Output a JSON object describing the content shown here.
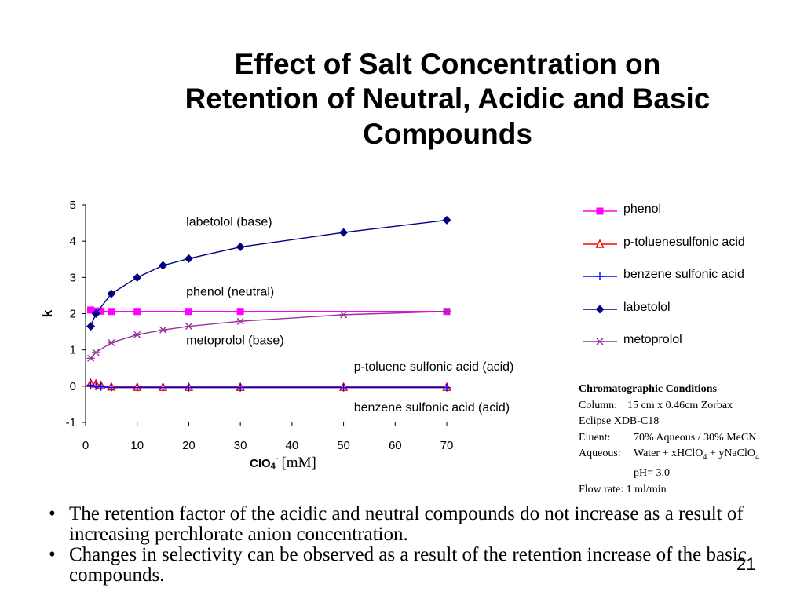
{
  "title": {
    "line1": "Effect of Salt Concentration on",
    "line2": "Retention of Neutral, Acidic and Basic",
    "line3": "Compounds"
  },
  "chart_data": {
    "type": "line",
    "xlabel_chem": "ClO",
    "xlabel_sub": "4",
    "xlabel_sup": "-",
    "xlabel_unit": "[mM]",
    "ylabel": "k",
    "xlim": [
      0,
      70
    ],
    "ylim": [
      -1,
      5
    ],
    "xticks": [
      "0",
      "10",
      "20",
      "30",
      "40",
      "50",
      "60",
      "70"
    ],
    "yticks": [
      "-1",
      "0",
      "1",
      "2",
      "3",
      "4",
      "5"
    ],
    "grid": false,
    "legend_position": "right",
    "series": [
      {
        "name": "phenol",
        "color": "#ff00ff",
        "marker": "square",
        "x": [
          1,
          2,
          3,
          5,
          10,
          20,
          30,
          70
        ],
        "y": [
          2.1,
          2.07,
          2.07,
          2.06,
          2.06,
          2.06,
          2.06,
          2.06
        ]
      },
      {
        "name": "p-toluenesulfonic acid",
        "color": "#ff0000",
        "marker": "triangle",
        "x": [
          1,
          2,
          3,
          5,
          10,
          15,
          20,
          30,
          50,
          70
        ],
        "y": [
          0.08,
          0.06,
          0.02,
          -0.02,
          -0.03,
          -0.03,
          -0.03,
          -0.03,
          -0.03,
          -0.03
        ]
      },
      {
        "name": "benzene sulfonic acid",
        "color": "#0000ff",
        "marker": "plus",
        "x": [
          1,
          2,
          3,
          5,
          10,
          15,
          20,
          30,
          50,
          70
        ],
        "y": [
          0.03,
          0.0,
          -0.02,
          -0.04,
          -0.04,
          -0.04,
          -0.04,
          -0.04,
          -0.04,
          -0.04
        ]
      },
      {
        "name": "labetolol",
        "color": "#000080",
        "marker": "diamond",
        "x": [
          1,
          2,
          5,
          10,
          15,
          20,
          30,
          50,
          70
        ],
        "y": [
          1.65,
          2.0,
          2.55,
          3.0,
          3.33,
          3.52,
          3.84,
          4.24,
          4.58
        ]
      },
      {
        "name": "metoprolol",
        "color": "#993399",
        "marker": "asterisk",
        "x": [
          1,
          2,
          5,
          10,
          15,
          20,
          30,
          50,
          70
        ],
        "y": [
          0.77,
          0.93,
          1.2,
          1.42,
          1.55,
          1.65,
          1.79,
          1.97,
          2.06
        ]
      }
    ],
    "annotations": [
      {
        "text": "labetolol (base)",
        "x": 19.5,
        "y": 4.43
      },
      {
        "text": "phenol (neutral)",
        "x": 19.5,
        "y": 2.5
      },
      {
        "text": "metoprolol (base)",
        "x": 19.5,
        "y": 1.15
      },
      {
        "text": "p-toluene sulfonic acid (acid)",
        "x": 52,
        "y": 0.43
      },
      {
        "text": "benzene sulfonic acid (acid)",
        "x": 52,
        "y": -0.7
      }
    ]
  },
  "conditions": {
    "title": "Chromatographic Conditions",
    "column_key": "Column:",
    "column_val1": "15 cm x 0.46cm Zorbax",
    "column_val2": "Eclipse XDB-C18",
    "eluent_key": "Eluent:",
    "eluent_val": "70% Aqueous  / 30% MeCN",
    "aqueous_key": "Aqueous:",
    "aqueous_val_a": "Water + xHClO",
    "aqueous_val_b": "4",
    "aqueous_val_c": " + yNaClO",
    "aqueous_val_d": "4",
    "ph": "pH= 3.0",
    "flow": "Flow rate: 1 ml/min"
  },
  "bullets": [
    "The retention factor of the acidic and neutral compounds do not increase as a result of increasing perchlorate anion concentration.",
    "Changes in selectivity can be observed as a result of the retention increase of the basic compounds."
  ],
  "page_number": "21"
}
